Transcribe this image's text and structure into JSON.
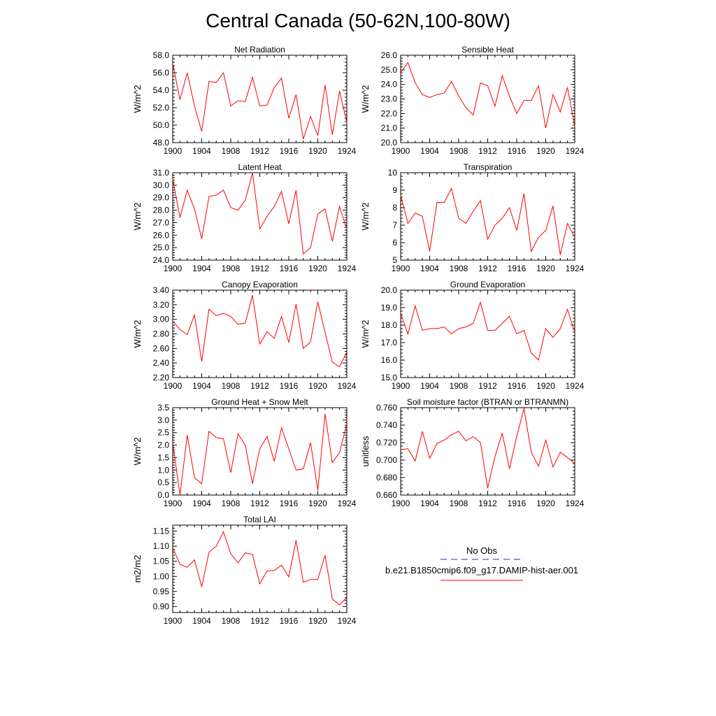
{
  "page_title": "Central Canada (50-62N,100-80W)",
  "legend": {
    "entries": [
      {
        "label": "No Obs",
        "color": "#2b2bb8",
        "dash": true
      },
      {
        "label": "b.e21.B1850cmip6.f09_g17.DAMIP-hist-aer.001",
        "color": "#ff0000",
        "dash": false
      }
    ]
  },
  "chart_data": [
    {
      "type": "line",
      "title": "Net Radiation",
      "ylabel": "W/m^2",
      "ylim": [
        48,
        58
      ],
      "yticks": [
        "48.0",
        "50.0",
        "52.0",
        "54.0",
        "56.0",
        "58.0"
      ],
      "xlim": [
        1900,
        1924
      ],
      "xticks": [
        "1900",
        "1904",
        "1908",
        "1912",
        "1916",
        "1920",
        "1924"
      ],
      "x": [
        1900,
        1901,
        1902,
        1903,
        1904,
        1905,
        1906,
        1907,
        1908,
        1909,
        1910,
        1911,
        1912,
        1913,
        1914,
        1915,
        1916,
        1917,
        1918,
        1919,
        1920,
        1921,
        1922,
        1923,
        1924
      ],
      "series": [
        {
          "color": "#ff0000",
          "values": [
            57.1,
            52.9,
            56.0,
            52.2,
            49.3,
            55.0,
            54.9,
            56.0,
            52.2,
            52.8,
            52.7,
            55.5,
            52.2,
            52.3,
            54.3,
            55.4,
            50.8,
            53.5,
            48.4,
            51.0,
            48.8,
            54.6,
            48.9,
            53.9,
            50.3
          ]
        }
      ]
    },
    {
      "type": "line",
      "title": "Sensible Heat",
      "ylabel": "W/m^2",
      "ylim": [
        20,
        26
      ],
      "yticks": [
        "20.0",
        "21.0",
        "22.0",
        "23.0",
        "24.0",
        "25.0",
        "26.0"
      ],
      "xlim": [
        1900,
        1924
      ],
      "xticks": [
        "1900",
        "1904",
        "1908",
        "1912",
        "1916",
        "1920",
        "1924"
      ],
      "x": [
        1900,
        1901,
        1902,
        1903,
        1904,
        1905,
        1906,
        1907,
        1908,
        1909,
        1910,
        1911,
        1912,
        1913,
        1914,
        1915,
        1916,
        1917,
        1918,
        1919,
        1920,
        1921,
        1922,
        1923,
        1924
      ],
      "series": [
        {
          "color": "#ff0000",
          "values": [
            24.8,
            25.5,
            24.1,
            23.3,
            23.1,
            23.3,
            23.4,
            24.2,
            23.2,
            22.4,
            21.9,
            24.1,
            23.9,
            22.5,
            24.6,
            23.2,
            22.0,
            22.9,
            22.9,
            23.9,
            21.0,
            23.3,
            22.1,
            23.8,
            21.1
          ]
        }
      ]
    },
    {
      "type": "line",
      "title": "Latent Heat",
      "ylabel": "W/m^2",
      "ylim": [
        24,
        31
      ],
      "yticks": [
        "24.0",
        "25.0",
        "26.0",
        "27.0",
        "28.0",
        "29.0",
        "30.0",
        "31.0"
      ],
      "xlim": [
        1900,
        1924
      ],
      "xticks": [
        "1900",
        "1904",
        "1908",
        "1912",
        "1916",
        "1920",
        "1924"
      ],
      "x": [
        1900,
        1901,
        1902,
        1903,
        1904,
        1905,
        1906,
        1907,
        1908,
        1909,
        1910,
        1911,
        1912,
        1913,
        1914,
        1915,
        1916,
        1917,
        1918,
        1919,
        1920,
        1921,
        1922,
        1923,
        1924
      ],
      "series": [
        {
          "color": "#ff0000",
          "values": [
            30.5,
            27.4,
            29.6,
            28.1,
            25.7,
            29.1,
            29.2,
            29.6,
            28.2,
            28.0,
            28.8,
            31.0,
            26.5,
            27.5,
            28.3,
            29.5,
            26.9,
            29.6,
            24.5,
            25.0,
            27.7,
            28.1,
            25.5,
            28.3,
            26.5
          ]
        }
      ]
    },
    {
      "type": "line",
      "title": "Transpiration",
      "ylabel": "W/m^2",
      "ylim": [
        5,
        10
      ],
      "yticks": [
        "5",
        "6",
        "7",
        "8",
        "9",
        "10"
      ],
      "xlim": [
        1900,
        1924
      ],
      "xticks": [
        "1900",
        "1904",
        "1908",
        "1912",
        "1916",
        "1920",
        "1924"
      ],
      "x": [
        1900,
        1901,
        1902,
        1903,
        1904,
        1905,
        1906,
        1907,
        1908,
        1909,
        1910,
        1911,
        1912,
        1913,
        1914,
        1915,
        1916,
        1917,
        1918,
        1919,
        1920,
        1921,
        1922,
        1923,
        1924
      ],
      "series": [
        {
          "color": "#ff0000",
          "values": [
            8.7,
            7.1,
            7.7,
            7.5,
            5.5,
            8.3,
            8.3,
            9.1,
            7.4,
            7.1,
            7.8,
            8.4,
            6.2,
            7.0,
            7.4,
            8.0,
            6.7,
            8.8,
            5.5,
            6.3,
            6.7,
            8.1,
            5.3,
            7.1,
            6.3
          ]
        }
      ]
    },
    {
      "type": "line",
      "title": "Canopy Evaporation",
      "ylabel": "W/m^2",
      "ylim": [
        2.2,
        3.4
      ],
      "yticks": [
        "2.20",
        "2.40",
        "2.60",
        "2.80",
        "3.00",
        "3.20",
        "3.40"
      ],
      "xlim": [
        1900,
        1924
      ],
      "xticks": [
        "1900",
        "1904",
        "1908",
        "1912",
        "1916",
        "1920",
        "1924"
      ],
      "x": [
        1900,
        1901,
        1902,
        1903,
        1904,
        1905,
        1906,
        1907,
        1908,
        1909,
        1910,
        1911,
        1912,
        1913,
        1914,
        1915,
        1916,
        1917,
        1918,
        1919,
        1920,
        1921,
        1922,
        1923,
        1924
      ],
      "series": [
        {
          "color": "#ff0000",
          "values": [
            2.98,
            2.86,
            2.79,
            3.06,
            2.42,
            3.14,
            3.05,
            3.08,
            3.04,
            2.93,
            2.95,
            3.33,
            2.66,
            2.83,
            2.74,
            3.04,
            2.68,
            3.21,
            2.6,
            2.69,
            3.24,
            2.82,
            2.41,
            2.35,
            2.55
          ]
        }
      ]
    },
    {
      "type": "line",
      "title": "Ground Evaporation",
      "ylabel": "W/m^2",
      "ylim": [
        15,
        20
      ],
      "yticks": [
        "15.0",
        "16.0",
        "17.0",
        "18.0",
        "19.0",
        "20.0"
      ],
      "xlim": [
        1900,
        1924
      ],
      "xticks": [
        "1900",
        "1904",
        "1908",
        "1912",
        "1916",
        "1920",
        "1924"
      ],
      "x": [
        1900,
        1901,
        1902,
        1903,
        1904,
        1905,
        1906,
        1907,
        1908,
        1909,
        1910,
        1911,
        1912,
        1913,
        1914,
        1915,
        1916,
        1917,
        1918,
        1919,
        1920,
        1921,
        1922,
        1923,
        1924
      ],
      "series": [
        {
          "color": "#ff0000",
          "values": [
            18.7,
            17.5,
            19.1,
            17.7,
            17.8,
            17.8,
            17.9,
            17.5,
            17.8,
            17.9,
            18.1,
            19.3,
            17.7,
            17.7,
            18.1,
            18.5,
            17.5,
            17.7,
            16.4,
            16.0,
            17.8,
            17.3,
            17.8,
            18.9,
            17.6
          ]
        }
      ]
    },
    {
      "type": "line",
      "title": "Ground Heat + Snow Melt",
      "ylabel": "W/m^2",
      "ylim": [
        0,
        3.5
      ],
      "yticks": [
        "0.0",
        "0.5",
        "1.0",
        "1.5",
        "2.0",
        "2.5",
        "3.0",
        "3.5"
      ],
      "xlim": [
        1900,
        1924
      ],
      "xticks": [
        "1900",
        "1904",
        "1908",
        "1912",
        "1916",
        "1920",
        "1924"
      ],
      "x": [
        1900,
        1901,
        1902,
        1903,
        1904,
        1905,
        1906,
        1907,
        1908,
        1909,
        1910,
        1911,
        1912,
        1913,
        1914,
        1915,
        1916,
        1917,
        1918,
        1919,
        1920,
        1921,
        1922,
        1923,
        1924
      ],
      "series": [
        {
          "color": "#ff0000",
          "values": [
            2.1,
            0.0,
            2.4,
            0.7,
            0.45,
            2.55,
            2.3,
            2.25,
            0.9,
            2.45,
            2.0,
            0.45,
            1.85,
            2.35,
            1.35,
            2.7,
            1.85,
            1.0,
            1.05,
            2.1,
            0.2,
            3.25,
            1.3,
            1.7,
            2.85
          ]
        }
      ]
    },
    {
      "type": "line",
      "title": "Soil moisture factor (BTRAN or BTRANMN)",
      "ylabel": "unitless",
      "ylim": [
        0.66,
        0.76
      ],
      "yticks": [
        "0.660",
        "0.680",
        "0.700",
        "0.720",
        "0.740",
        "0.760"
      ],
      "xlim": [
        1900,
        1924
      ],
      "xticks": [
        "1900",
        "1904",
        "1908",
        "1912",
        "1916",
        "1920",
        "1924"
      ],
      "x": [
        1900,
        1901,
        1902,
        1903,
        1904,
        1905,
        1906,
        1907,
        1908,
        1909,
        1910,
        1911,
        1912,
        1913,
        1914,
        1915,
        1916,
        1917,
        1918,
        1919,
        1920,
        1921,
        1922,
        1923,
        1924
      ],
      "series": [
        {
          "color": "#ff0000",
          "values": [
            0.712,
            0.713,
            0.699,
            0.733,
            0.702,
            0.719,
            0.723,
            0.729,
            0.733,
            0.722,
            0.727,
            0.72,
            0.668,
            0.704,
            0.731,
            0.69,
            0.727,
            0.759,
            0.709,
            0.693,
            0.723,
            0.692,
            0.709,
            0.703,
            0.696
          ]
        }
      ]
    },
    {
      "type": "line",
      "title": "Total LAI",
      "ylabel": "m2/m2",
      "ylim": [
        0.88,
        1.17
      ],
      "yticks": [
        "0.90",
        "0.95",
        "1.00",
        "1.05",
        "1.10",
        "1.15"
      ],
      "ytick_values": [
        0.9,
        0.95,
        1.0,
        1.05,
        1.1,
        1.15
      ],
      "xlim": [
        1900,
        1924
      ],
      "xticks": [
        "1900",
        "1904",
        "1908",
        "1912",
        "1916",
        "1920",
        "1924"
      ],
      "x": [
        1900,
        1901,
        1902,
        1903,
        1904,
        1905,
        1906,
        1907,
        1908,
        1909,
        1910,
        1911,
        1912,
        1913,
        1914,
        1915,
        1916,
        1917,
        1918,
        1919,
        1920,
        1921,
        1922,
        1923,
        1924
      ],
      "series": [
        {
          "color": "#ff0000",
          "values": [
            1.095,
            1.04,
            1.03,
            1.055,
            0.965,
            1.08,
            1.1,
            1.148,
            1.075,
            1.045,
            1.078,
            1.073,
            0.975,
            1.018,
            1.02,
            1.037,
            0.998,
            1.12,
            0.98,
            0.99,
            0.99,
            1.07,
            0.925,
            0.905,
            0.93
          ]
        }
      ]
    }
  ]
}
